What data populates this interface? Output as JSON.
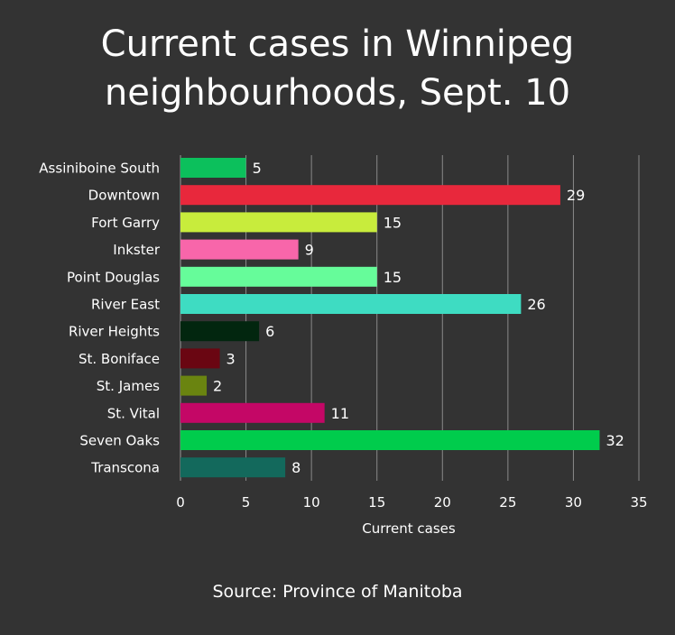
{
  "chart_data": {
    "type": "bar",
    "orientation": "horizontal",
    "title_lines": [
      "Current cases in Winnipeg",
      "neighbourhoods, Sept. 10"
    ],
    "xlabel": "Current cases",
    "ylabel": "",
    "xlim": [
      0,
      35
    ],
    "xticks": [
      0,
      5,
      10,
      15,
      20,
      25,
      30,
      35
    ],
    "grid": true,
    "data_labels": true,
    "categories": [
      "Assiniboine South",
      "Downtown",
      "Fort Garry",
      "Inkster",
      "Point Douglas",
      "River East",
      "River Heights",
      "St. Boniface",
      "St. James",
      "St. Vital",
      "Seven Oaks",
      "Transcona"
    ],
    "values": [
      5,
      29,
      15,
      9,
      15,
      26,
      6,
      3,
      2,
      11,
      32,
      8
    ],
    "colors": [
      "#0cc05c",
      "#e8283c",
      "#c8ec3c",
      "#f866aa",
      "#66fc9a",
      "#3edcc2",
      "#02260f",
      "#6a0612",
      "#6a8410",
      "#c40766",
      "#00cc4c",
      "#13695c"
    ],
    "source": "Source: Province of Manitoba"
  },
  "style": {
    "background": "#333333",
    "text": "#ffffff",
    "grid": "#8a8a8a"
  }
}
